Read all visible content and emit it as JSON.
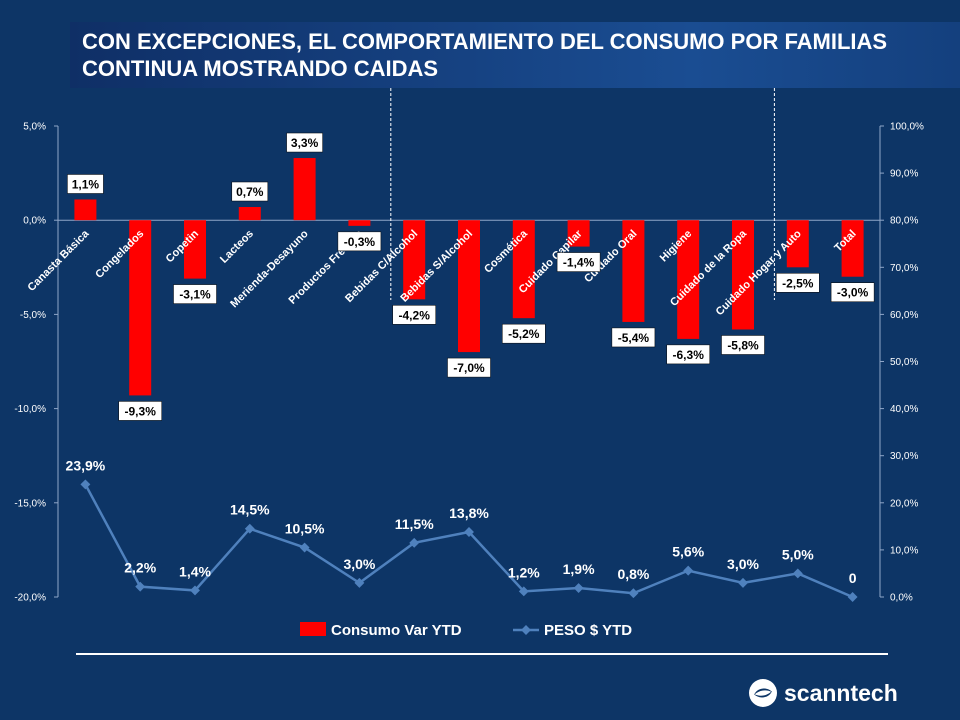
{
  "title": "CON EXCEPCIONES, EL COMPORTAMIENTO DEL CONSUMO POR FAMILIAS CONTINUA MOSTRANDO CAIDAS",
  "brand": {
    "name": "scanntech"
  },
  "chart_data": {
    "type": "bar",
    "categories": [
      "Canasta Básica",
      "Congelados",
      "Copetin",
      "Lacteos",
      "Merienda-Desayuno",
      "Productos Frescos",
      "Bebidas C/Alcohol",
      "Bebidas S/Alcohol",
      "Cosmética",
      "Cuidado Capilar",
      "Cuidado Oral",
      "Higiene",
      "Cuidado de la Ropa",
      "Cuidado Hogar y Auto",
      "Total"
    ],
    "series": [
      {
        "name": "Consumo Var YTD",
        "type": "bar",
        "axis": "left",
        "color": "#ff0000",
        "values": [
          1.1,
          -9.3,
          -3.1,
          0.7,
          3.3,
          -0.3,
          -4.2,
          -7.0,
          -5.2,
          -1.4,
          -5.4,
          -6.3,
          -5.8,
          -2.5,
          -3.0
        ],
        "labels": [
          "1,1%",
          "-9,3%",
          "-3,1%",
          "0,7%",
          "3,3%",
          "-0,3%",
          "-4,2%",
          "-7,0%",
          "-5,2%",
          "-1,4%",
          "-5,4%",
          "-6,3%",
          "-5,8%",
          "-2,5%",
          "-3,0%"
        ]
      },
      {
        "name": "PESO $ YTD",
        "type": "line",
        "axis": "right",
        "color": "#4f81bd",
        "values": [
          23.9,
          2.2,
          1.4,
          14.5,
          10.5,
          3.0,
          11.5,
          13.8,
          1.2,
          1.9,
          0.8,
          5.6,
          3.0,
          5.0,
          0
        ],
        "labels": [
          "23,9%",
          "2,2%",
          "1,4%",
          "14,5%",
          "10,5%",
          "3,0%",
          "11,5%",
          "13,8%",
          "1,2%",
          "1,9%",
          "0,8%",
          "5,6%",
          "3,0%",
          "5,0%",
          "0"
        ]
      }
    ],
    "y_left": {
      "ylim": [
        -20,
        5
      ],
      "ticks": [
        5,
        0,
        -5,
        -10,
        -15,
        -20
      ],
      "tick_labels": [
        "5,0%",
        "0,0%",
        "-5,0%",
        "-10,0%",
        "-15,0%",
        "-20,0%"
      ]
    },
    "y_right": {
      "ylim": [
        0,
        100
      ],
      "ticks": [
        100,
        90,
        80,
        70,
        60,
        50,
        40,
        30,
        20,
        10,
        0
      ],
      "tick_labels": [
        "100,0%",
        "90,0%",
        "80,0%",
        "70,0%",
        "60,0%",
        "50,0%",
        "40,0%",
        "30,0%",
        "20,0%",
        "10,0%",
        "0,0%"
      ]
    },
    "divider_after": [
      5,
      12
    ],
    "legend_position": "bottom",
    "grid": false
  }
}
